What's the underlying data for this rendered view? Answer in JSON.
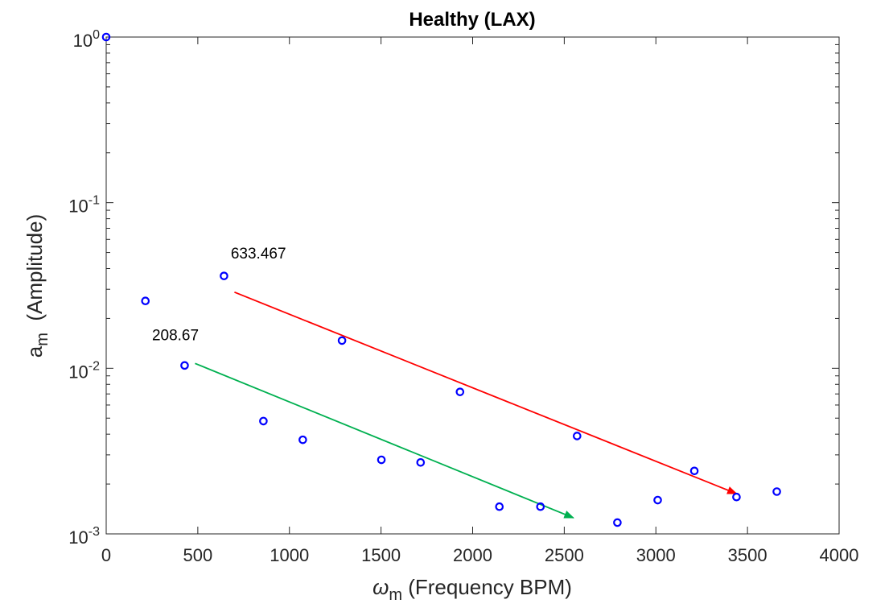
{
  "chart_data": {
    "type": "scatter",
    "title": "Healthy (LAX)",
    "xlabel": {
      "symbol": "ω",
      "subscript": "m",
      "text": " (Frequency BPM)"
    },
    "ylabel": {
      "symbol": "a",
      "subscript": "m",
      "text": "  (Amplitude)"
    },
    "xlim": [
      0,
      4000
    ],
    "ylim": [
      0.001,
      1
    ],
    "yscale": "log",
    "xticks": [
      0,
      500,
      1000,
      1500,
      2000,
      2500,
      3000,
      3500,
      4000
    ],
    "xtick_labels": [
      "0",
      "500",
      "1000",
      "1500",
      "2000",
      "2500",
      "3000",
      "3500",
      "4000"
    ],
    "yticks": [
      {
        "value": 1,
        "base": "10",
        "exp": "0"
      },
      {
        "value": 0.1,
        "base": "10",
        "exp": "-1"
      },
      {
        "value": 0.01,
        "base": "10",
        "exp": "-2"
      },
      {
        "value": 0.001,
        "base": "10",
        "exp": "-3"
      }
    ],
    "series": [
      {
        "name": "amplitudes",
        "marker": "circle-open",
        "color": "#0000ff",
        "x": [
          0,
          214,
          428,
          643,
          858,
          1073,
          1287,
          1502,
          1716,
          1931,
          2146,
          2370,
          2570,
          2790,
          3010,
          3210,
          3440,
          3660
        ],
        "y": [
          1.0,
          0.0255,
          0.0104,
          0.0361,
          0.0048,
          0.0037,
          0.0147,
          0.0028,
          0.0027,
          0.0072,
          0.00146,
          0.00146,
          0.0039,
          0.00117,
          0.0016,
          0.0024,
          0.00167,
          0.0018
        ]
      }
    ],
    "annotations": [
      {
        "label": "633.467",
        "label_x": 680,
        "label_y": 0.046,
        "arrow_color": "#ff0000",
        "arrow_from": {
          "x": 700,
          "y": 0.0288
        },
        "arrow_to": {
          "x": 3440,
          "y": 0.00175
        }
      },
      {
        "label": "208.67",
        "label_x": 250,
        "label_y": 0.0148,
        "arrow_color": "#00b050",
        "arrow_from": {
          "x": 485,
          "y": 0.0107
        },
        "arrow_to": {
          "x": 2550,
          "y": 0.00125
        }
      }
    ]
  }
}
